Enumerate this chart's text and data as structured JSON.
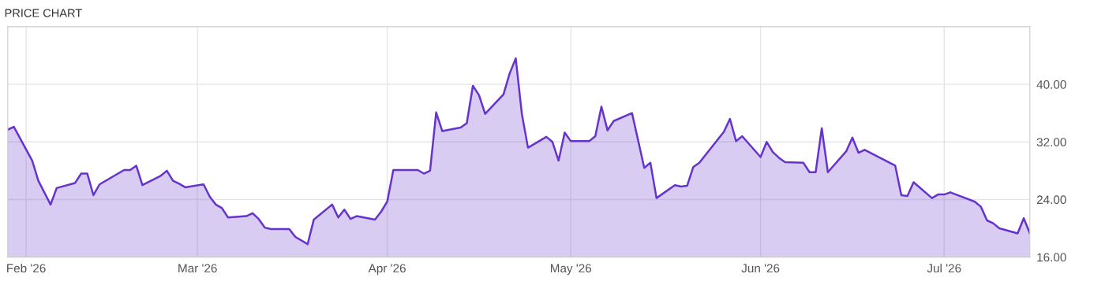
{
  "chart_data": {
    "type": "area",
    "title": "PRICE CHART",
    "x": [
      "2026-01-29",
      "2026-01-30",
      "2026-02-02",
      "2026-02-03",
      "2026-02-05",
      "2026-02-06",
      "2026-02-09",
      "2026-02-10",
      "2026-02-11",
      "2026-02-12",
      "2026-02-13",
      "2026-02-17",
      "2026-02-18",
      "2026-02-19",
      "2026-02-20",
      "2026-02-23",
      "2026-02-24",
      "2026-02-25",
      "2026-02-26",
      "2026-02-27",
      "2026-03-02",
      "2026-03-03",
      "2026-03-04",
      "2026-03-05",
      "2026-03-06",
      "2026-03-09",
      "2026-03-10",
      "2026-03-11",
      "2026-03-12",
      "2026-03-13",
      "2026-03-16",
      "2026-03-17",
      "2026-03-19",
      "2026-03-20",
      "2026-03-23",
      "2026-03-24",
      "2026-03-25",
      "2026-03-26",
      "2026-03-27",
      "2026-03-30",
      "2026-03-31",
      "2026-04-01",
      "2026-04-02",
      "2026-04-06",
      "2026-04-07",
      "2026-04-08",
      "2026-04-09",
      "2026-04-10",
      "2026-04-13",
      "2026-04-14",
      "2026-04-15",
      "2026-04-16",
      "2026-04-17",
      "2026-04-20",
      "2026-04-21",
      "2026-04-22",
      "2026-04-23",
      "2026-04-24",
      "2026-04-27",
      "2026-04-28",
      "2026-04-29",
      "2026-04-30",
      "2026-05-01",
      "2026-05-04",
      "2026-05-05",
      "2026-05-06",
      "2026-05-07",
      "2026-05-08",
      "2026-05-11",
      "2026-05-13",
      "2026-05-14",
      "2026-05-15",
      "2026-05-18",
      "2026-05-19",
      "2026-05-20",
      "2026-05-21",
      "2026-05-22",
      "2026-05-26",
      "2026-05-27",
      "2026-05-28",
      "2026-05-29",
      "2026-06-01",
      "2026-06-02",
      "2026-06-03",
      "2026-06-04",
      "2026-06-05",
      "2026-06-08",
      "2026-06-09",
      "2026-06-10",
      "2026-06-11",
      "2026-06-12",
      "2026-06-15",
      "2026-06-16",
      "2026-06-17",
      "2026-06-18",
      "2026-06-23",
      "2026-06-24",
      "2026-06-25",
      "2026-06-26",
      "2026-06-29",
      "2026-06-30",
      "2026-07-01",
      "2026-07-02",
      "2026-07-06",
      "2026-07-07",
      "2026-07-08",
      "2026-07-09",
      "2026-07-10",
      "2026-07-13",
      "2026-07-14",
      "2026-07-15"
    ],
    "series": [
      {
        "color": "#6633cc",
        "values": [
          33.7,
          34.1,
          29.4,
          26.6,
          23.3,
          25.6,
          26.3,
          27.6,
          27.6,
          24.6,
          26.1,
          28.1,
          28.1,
          28.7,
          26.0,
          27.3,
          28.0,
          26.6,
          26.2,
          25.7,
          26.1,
          24.4,
          23.3,
          22.8,
          21.5,
          21.7,
          22.1,
          21.3,
          20.1,
          19.9,
          19.9,
          18.8,
          17.8,
          21.2,
          23.3,
          21.5,
          22.6,
          21.3,
          21.7,
          21.2,
          22.3,
          23.7,
          28.1,
          28.1,
          27.6,
          28.0,
          36.1,
          33.5,
          34.0,
          34.6,
          39.8,
          38.5,
          35.9,
          38.6,
          41.5,
          43.6,
          35.9,
          31.2,
          32.7,
          32.0,
          29.4,
          33.3,
          32.1,
          32.1,
          32.8,
          36.9,
          33.6,
          34.9,
          36.0,
          28.4,
          29.1,
          24.2,
          26.0,
          25.8,
          25.9,
          28.5,
          29.1,
          33.4,
          35.2,
          32.1,
          32.8,
          29.9,
          32.0,
          30.6,
          29.8,
          29.2,
          29.1,
          27.8,
          27.8,
          33.9,
          27.8,
          30.7,
          32.6,
          30.5,
          30.9,
          28.7,
          24.6,
          24.5,
          26.4,
          24.2,
          24.7,
          24.7,
          25.0,
          23.7,
          23.0,
          21.1,
          20.7,
          20.0,
          19.3,
          21.4,
          19.3
        ]
      }
    ],
    "xlim": [
      "2026-01-29",
      "2026-07-15"
    ],
    "xticks": [
      {
        "value": "2026-02-01",
        "label": "Feb '26"
      },
      {
        "value": "2026-03-01",
        "label": "Mar '26"
      },
      {
        "value": "2026-04-01",
        "label": "Apr '26"
      },
      {
        "value": "2026-05-01",
        "label": "May '26"
      },
      {
        "value": "2026-06-01",
        "label": "Jun '26"
      },
      {
        "value": "2026-07-01",
        "label": "Jul '26"
      }
    ],
    "ylim": [
      16,
      48
    ],
    "yticks": [
      {
        "value": 16,
        "label": "16.00"
      },
      {
        "value": 24,
        "label": "24.00"
      },
      {
        "value": 32,
        "label": "32.00"
      },
      {
        "value": 40,
        "label": "40.00"
      }
    ],
    "grid": true
  }
}
